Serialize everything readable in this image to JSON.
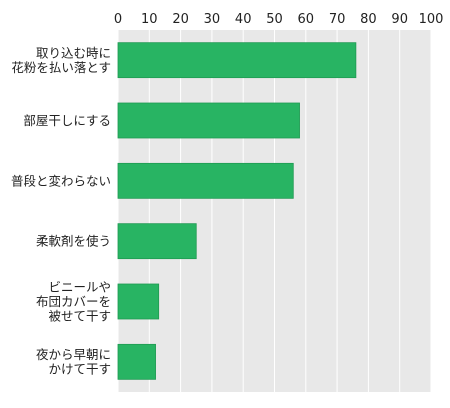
{
  "chart_data": {
    "type": "bar",
    "orientation": "horizontal",
    "title": "",
    "xlabel": "",
    "ylabel": "",
    "categories": [
      [
        "取り込む時に",
        "花粉を払い落とす"
      ],
      [
        "部屋干しにする"
      ],
      [
        "普段と変わらない"
      ],
      [
        "柔軟剤を使う"
      ],
      [
        "ビニールや",
        "布団カバーを",
        "被せて干す"
      ],
      [
        "夜から早朝に",
        "かけて干す"
      ]
    ],
    "values": [
      76,
      58,
      56,
      25,
      13,
      12
    ],
    "xlim": [
      0,
      100
    ],
    "xticks": [
      0,
      10,
      20,
      30,
      40,
      50,
      60,
      70,
      80,
      90,
      100
    ],
    "tick_labels": [
      "0",
      "10",
      "20",
      "30",
      "40",
      "50",
      "60",
      "70",
      "80",
      "90",
      "100"
    ],
    "grid": true,
    "legend": "none"
  },
  "colors": {
    "bar": "#28b463",
    "bar_edge": "#1f9a52",
    "plot_background": "#e8e8e8",
    "gridline": "#ffffff",
    "text": "#222222"
  }
}
